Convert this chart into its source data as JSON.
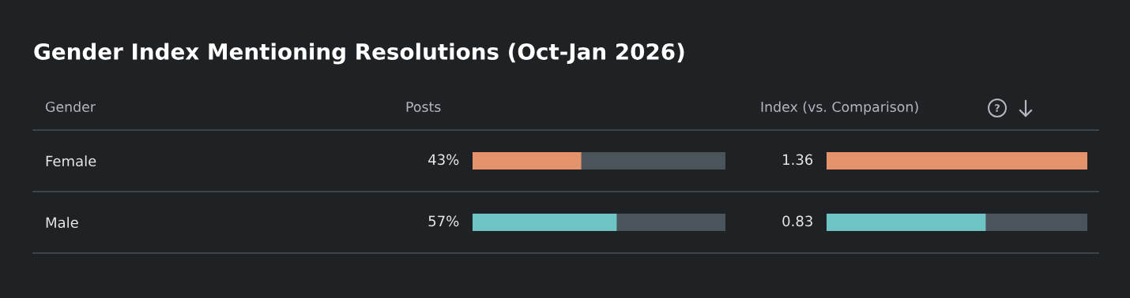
{
  "chart_data": [
    {
      "type": "bar",
      "orientation": "horizontal",
      "title": "Gender Index Mentioning Resolutions (Oct-Jan 2026)",
      "ylabel": "Gender",
      "xlabel": "Posts",
      "categories": [
        "Female",
        "Male"
      ],
      "values": [
        43,
        57
      ],
      "colors": [
        "#e5936b",
        "#6ec3c5"
      ],
      "value_labels": [
        "43%",
        "57%"
      ],
      "xlim": [
        0,
        100
      ]
    },
    {
      "type": "bar",
      "orientation": "horizontal",
      "xlabel": "Index (vs. Comparison)",
      "categories": [
        null,
        null
      ],
      "values": [
        1.36,
        0.83
      ],
      "colors": [
        "#e5936b",
        "#6ec3c5"
      ],
      "value_labels": [
        "1.36",
        "0.83"
      ],
      "xlim": [
        0,
        1.36
      ]
    }
  ]
}
